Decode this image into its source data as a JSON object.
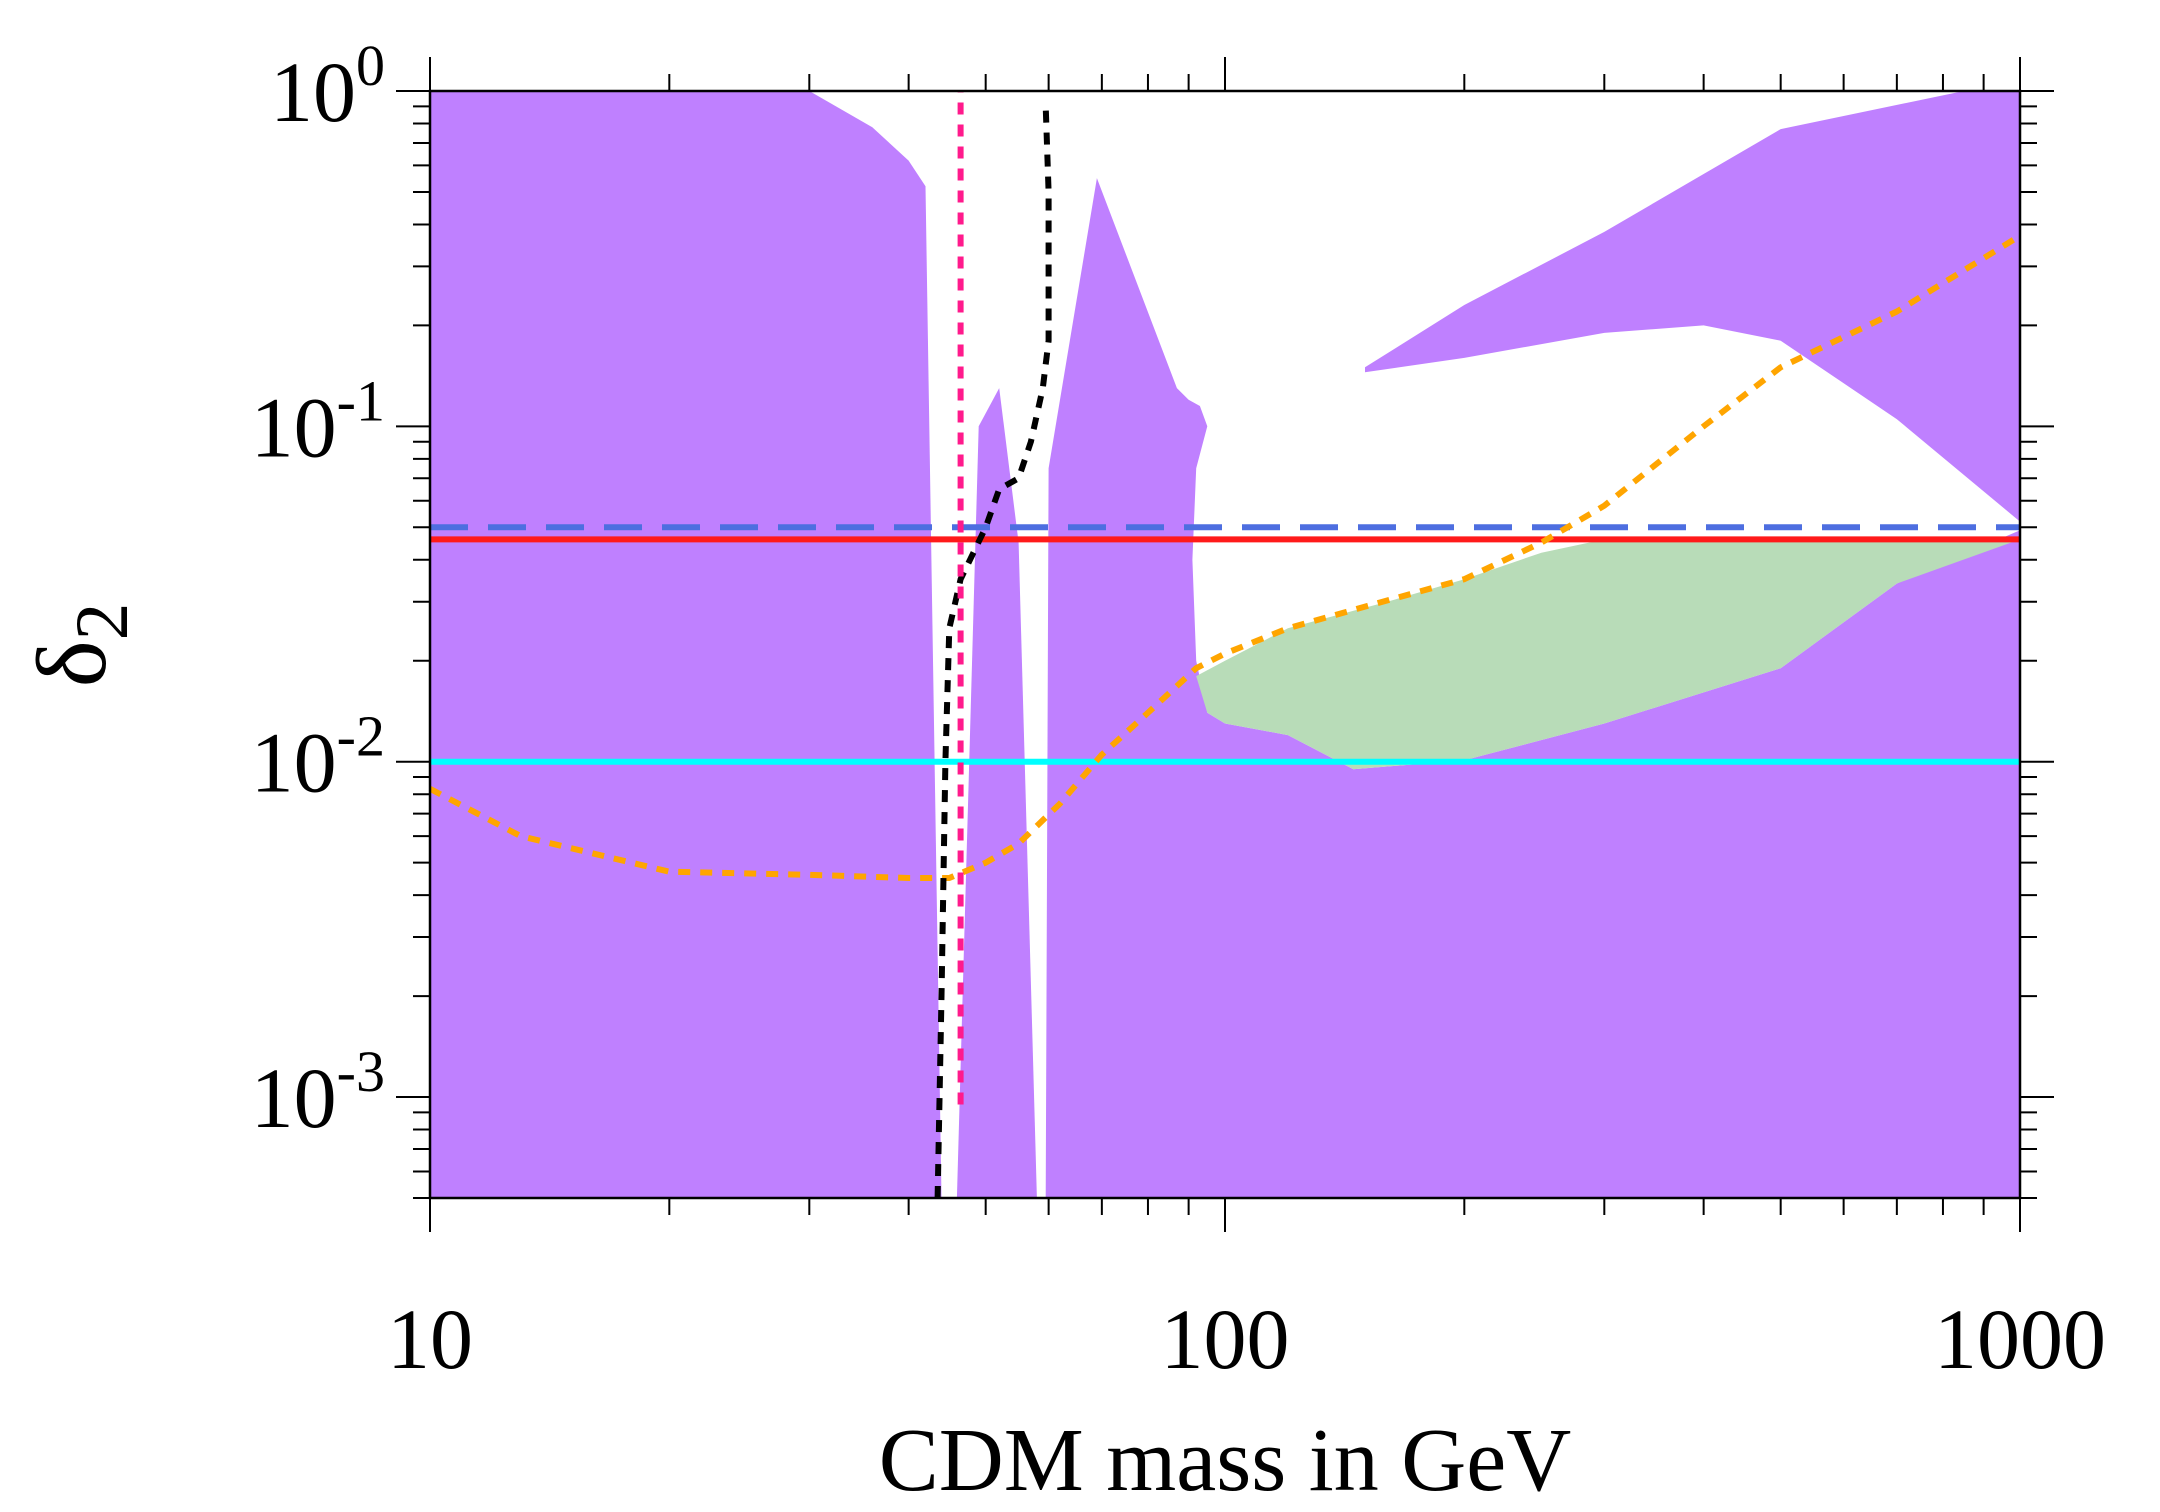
{
  "chart_data": {
    "type": "line",
    "xlabel": "CDM mass in GeV",
    "ylabel": "δ2",
    "ylabel_base": "δ",
    "ylabel_sub": "2",
    "x_scale": "log",
    "y_scale": "log",
    "xlim": [
      10,
      1000
    ],
    "ylim": [
      0.0005,
      1
    ],
    "x_ticks": [
      {
        "value": 10,
        "label": "10"
      },
      {
        "value": 100,
        "label": "100"
      },
      {
        "value": 1000,
        "label": "1000"
      }
    ],
    "y_ticks": [
      {
        "value": 1,
        "base": "10",
        "exp": "0"
      },
      {
        "value": 0.1,
        "base": "10",
        "exp": "-1"
      },
      {
        "value": 0.01,
        "base": "10",
        "exp": "-2"
      },
      {
        "value": 0.001,
        "base": "10",
        "exp": "-3"
      }
    ],
    "grid": false,
    "colors": {
      "excluded_region": "#bf80ff",
      "allowed_region": "#b8dcb8",
      "horizontal_dashed_blue": "#4d6ee0",
      "horizontal_red": "#ff1a1a",
      "horizontal_cyan": "#00ffff",
      "curve_orange": "#ffa500",
      "curve_black": "#000000",
      "curve_pink": "#ff1a8c"
    },
    "regions": [
      {
        "id": "excluded-left",
        "fill": "#bf80ff",
        "points": [
          [
            10,
            1
          ],
          [
            30,
            1
          ],
          [
            36,
            0.78
          ],
          [
            40,
            0.62
          ],
          [
            42,
            0.52
          ],
          [
            44,
            0.0005
          ],
          [
            10,
            0.0005
          ]
        ]
      },
      {
        "id": "excluded-center-left",
        "fill": "#bf80ff",
        "points": [
          [
            46,
            0.0005
          ],
          [
            49,
            0.1
          ],
          [
            52,
            0.13
          ],
          [
            55,
            0.045
          ],
          [
            58,
            0.0005
          ]
        ]
      },
      {
        "id": "excluded-main",
        "fill": "#bf80ff",
        "points": [
          [
            59.5,
            0.0005
          ],
          [
            60,
            0.075
          ],
          [
            69,
            0.55
          ],
          [
            87,
            0.13
          ],
          [
            90,
            0.12
          ],
          [
            93,
            0.115
          ],
          [
            95,
            0.1
          ],
          [
            92,
            0.075
          ],
          [
            91,
            0.04
          ],
          [
            92,
            0.02
          ],
          [
            95,
            0.014
          ],
          [
            100,
            0.013
          ],
          [
            120,
            0.012
          ],
          [
            145,
            0.0095
          ],
          [
            200,
            0.0101
          ],
          [
            300,
            0.013
          ],
          [
            500,
            0.019
          ],
          [
            700,
            0.034
          ],
          [
            1000,
            0.049
          ],
          [
            1000,
            1
          ],
          [
            850,
            1
          ],
          [
            500,
            0.77
          ],
          [
            300,
            0.38
          ],
          [
            200,
            0.23
          ],
          [
            150,
            0.15
          ],
          [
            150,
            0.145
          ],
          [
            200,
            0.16
          ],
          [
            300,
            0.19
          ],
          [
            400,
            0.2
          ],
          [
            500,
            0.18
          ],
          [
            700,
            0.105
          ],
          [
            1000,
            0.052
          ],
          [
            1000,
            0.0005
          ]
        ]
      },
      {
        "id": "allowed-green",
        "fill": "#b8dcb8",
        "points": [
          [
            92,
            0.018
          ],
          [
            100,
            0.02
          ],
          [
            120,
            0.025
          ],
          [
            160,
            0.03
          ],
          [
            200,
            0.035
          ],
          [
            250,
            0.042
          ],
          [
            300,
            0.046
          ],
          [
            1000,
            0.046
          ],
          [
            700,
            0.034
          ],
          [
            500,
            0.019
          ],
          [
            300,
            0.013
          ],
          [
            200,
            0.0101
          ],
          [
            145,
            0.0095
          ],
          [
            120,
            0.012
          ],
          [
            100,
            0.013
          ],
          [
            95,
            0.014
          ]
        ]
      }
    ],
    "series": [
      {
        "id": "blue-dashed",
        "style": "dashed",
        "color": "#4d6ee0",
        "x": [
          10,
          1000
        ],
        "y": [
          0.05,
          0.05
        ]
      },
      {
        "id": "red-solid",
        "style": "solid",
        "color": "#ff1a1a",
        "x": [
          10,
          1000
        ],
        "y": [
          0.046,
          0.046
        ]
      },
      {
        "id": "cyan-solid",
        "style": "solid",
        "color": "#00ffff",
        "x": [
          10,
          1000
        ],
        "y": [
          0.01,
          0.01
        ]
      },
      {
        "id": "orange-dotted",
        "style": "dotted",
        "color": "#ffa500",
        "x": [
          10,
          13,
          20,
          30,
          40,
          45,
          50,
          55,
          62,
          70,
          80,
          92,
          100,
          120,
          150,
          200,
          250,
          300,
          400,
          500,
          700,
          1000
        ],
        "y": [
          0.0083,
          0.006,
          0.0047,
          0.0046,
          0.0045,
          0.0045,
          0.005,
          0.0057,
          0.0075,
          0.0105,
          0.014,
          0.019,
          0.021,
          0.025,
          0.029,
          0.035,
          0.045,
          0.058,
          0.1,
          0.15,
          0.22,
          0.37
        ]
      },
      {
        "id": "black-dotted",
        "style": "dotted",
        "color": "#000000",
        "x": [
          43.5,
          44,
          44.5,
          45,
          46.5,
          50,
          52,
          55,
          57,
          59,
          60,
          60,
          59.5
        ],
        "y": [
          0.0005,
          0.002,
          0.01,
          0.025,
          0.035,
          0.05,
          0.065,
          0.07,
          0.09,
          0.13,
          0.18,
          0.5,
          0.9
        ]
      },
      {
        "id": "pink-dotted",
        "style": "dotted",
        "color": "#ff1a8c",
        "x": [
          46.5,
          46.5
        ],
        "y": [
          0.00095,
          1
        ]
      }
    ]
  }
}
